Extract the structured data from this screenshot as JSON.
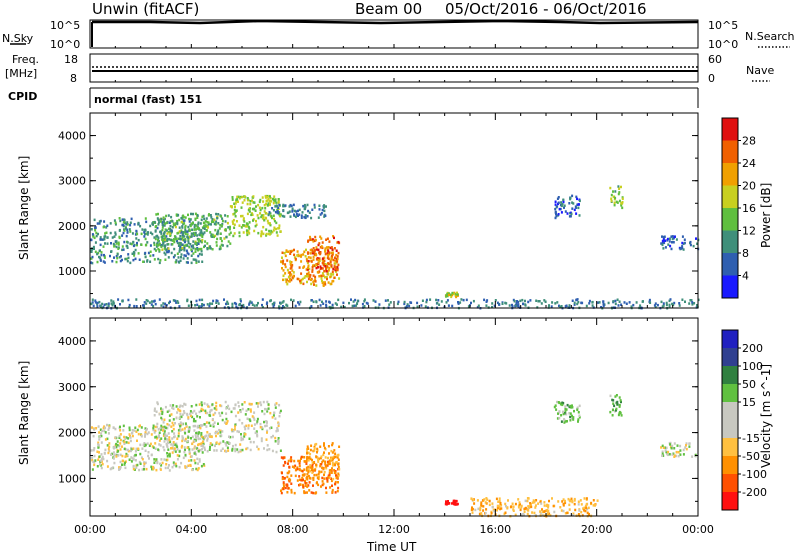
{
  "header": {
    "title": "Unwin (fitACF)",
    "beam": "Beam 00",
    "date_range": "05/Oct/2016 - 06/Oct/2016"
  },
  "strips": {
    "nsky_label": "N.Sky",
    "nsky_ticks": [
      "10^5",
      "10^0"
    ],
    "nsearch_label": "N.Search",
    "freq_label": "Freq.",
    "freq_unit": "[MHz]",
    "freq_ticks": [
      "18",
      "8"
    ],
    "nave_ticks": [
      "60",
      "0"
    ],
    "nave_label": "Nave",
    "cpid_label": "CPID",
    "cpid_value": "normal (fast) 151"
  },
  "colors": {
    "power_scale": [
      "#1a1aff",
      "#2f5fb0",
      "#3f8f7a",
      "#5fbf3f",
      "#c8d020",
      "#f0a000",
      "#f06000",
      "#e01010"
    ],
    "velocity_scale": [
      "#ff1010",
      "#ff5000",
      "#ff9000",
      "#ffc040",
      "#c8c8c0",
      "#c8c8c0",
      "#60c040",
      "#308040",
      "#304090",
      "#2020c0"
    ]
  },
  "chart_data": [
    {
      "type": "heatmap",
      "panel": "power",
      "ylabel": "Slant Range [km]",
      "yticks": [
        "1000",
        "2000",
        "3000",
        "4000"
      ],
      "ylim": [
        180,
        4500
      ],
      "xlim": [
        "00:00",
        "24:00"
      ],
      "xtick_labels": [
        "00:00",
        "04:00",
        "08:00",
        "12:00",
        "16:00",
        "20:00",
        "00:00"
      ],
      "colorbar_label": "Power [dB]",
      "colorbar_ticks": [
        "4",
        "8",
        "12",
        "16",
        "20",
        "24",
        "28"
      ],
      "colorbar_range": [
        0,
        32
      ],
      "echo_regions": [
        {
          "t0": 0.0,
          "t1": 4.5,
          "r0": 1200,
          "r1": 2200,
          "value": 10
        },
        {
          "t0": 2.5,
          "t1": 5.5,
          "r0": 1500,
          "r1": 2300,
          "value": 13
        },
        {
          "t0": 5.5,
          "t1": 7.5,
          "r0": 1800,
          "r1": 2700,
          "value": 16
        },
        {
          "t0": 7.0,
          "t1": 9.3,
          "r0": 2200,
          "r1": 2500,
          "value": 8
        },
        {
          "t0": 7.5,
          "t1": 9.8,
          "r0": 700,
          "r1": 1500,
          "value": 22
        },
        {
          "t0": 8.5,
          "t1": 9.8,
          "r0": 1000,
          "r1": 1800,
          "value": 26
        },
        {
          "t0": 0.0,
          "t1": 24.0,
          "r0": 200,
          "r1": 400,
          "value": 8
        },
        {
          "t0": 14.0,
          "t1": 14.5,
          "r0": 450,
          "r1": 550,
          "value": 18
        },
        {
          "t0": 18.3,
          "t1": 19.3,
          "r0": 2200,
          "r1": 2700,
          "value": 6
        },
        {
          "t0": 20.5,
          "t1": 21.0,
          "r0": 2400,
          "r1": 2900,
          "value": 15
        },
        {
          "t0": 22.5,
          "t1": 24.0,
          "r0": 1500,
          "r1": 1800,
          "value": 7
        }
      ]
    },
    {
      "type": "heatmap",
      "panel": "velocity",
      "ylabel": "Slant Range [km]",
      "yticks": [
        "1000",
        "2000",
        "3000",
        "4000"
      ],
      "ylim": [
        180,
        4500
      ],
      "xlim": [
        "00:00",
        "24:00"
      ],
      "xtick_labels": [
        "00:00",
        "04:00",
        "08:00",
        "12:00",
        "16:00",
        "20:00",
        "00:00"
      ],
      "xlabel": "Time UT",
      "colorbar_label": "Velocity [m s^-1]",
      "colorbar_ticks": [
        "-200",
        "-100",
        "-50",
        "-15",
        "15",
        "50",
        "100",
        "200"
      ],
      "echo_regions": [
        {
          "t0": 0.0,
          "t1": 4.5,
          "r0": 1200,
          "r1": 2200,
          "value": 0
        },
        {
          "t0": 2.5,
          "t1": 7.5,
          "r0": 1600,
          "r1": 2700,
          "value": 0
        },
        {
          "t0": 7.5,
          "t1": 9.8,
          "r0": 700,
          "r1": 1500,
          "value": -90
        },
        {
          "t0": 8.5,
          "t1": 9.8,
          "r0": 1000,
          "r1": 1800,
          "value": -60
        },
        {
          "t0": 14.0,
          "t1": 14.5,
          "r0": 450,
          "r1": 550,
          "value": -230
        },
        {
          "t0": 15.0,
          "t1": 20.0,
          "r0": 200,
          "r1": 600,
          "value": -40
        },
        {
          "t0": 18.3,
          "t1": 19.3,
          "r0": 2200,
          "r1": 2700,
          "value": 30
        },
        {
          "t0": 20.5,
          "t1": 21.0,
          "r0": 2400,
          "r1": 2900,
          "value": 40
        },
        {
          "t0": 22.5,
          "t1": 24.0,
          "r0": 1500,
          "r1": 1800,
          "value": 0
        }
      ]
    }
  ]
}
